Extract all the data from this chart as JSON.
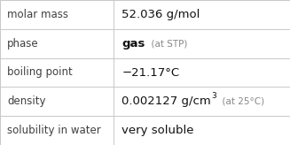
{
  "rows": [
    {
      "label": "molar mass",
      "parts": [
        {
          "text": "52.036 g/mol",
          "style": "normal",
          "size": 9.5,
          "color": "#111111"
        }
      ]
    },
    {
      "label": "phase",
      "parts": [
        {
          "text": "gas",
          "style": "bold",
          "size": 9.5,
          "color": "#111111"
        },
        {
          "text": "  (at STP)",
          "style": "normal",
          "size": 7.5,
          "color": "#888888"
        }
      ]
    },
    {
      "label": "boiling point",
      "parts": [
        {
          "text": "−21.17°C",
          "style": "normal",
          "size": 9.5,
          "color": "#111111"
        }
      ]
    },
    {
      "label": "density",
      "parts": [
        {
          "text": "0.002127 g/cm",
          "style": "normal",
          "size": 9.5,
          "color": "#111111"
        },
        {
          "text": "3",
          "style": "super",
          "size": 6.5,
          "color": "#111111"
        },
        {
          "text": "  (at 25°C)",
          "style": "normal",
          "size": 7.5,
          "color": "#888888"
        }
      ]
    },
    {
      "label": "solubility in water",
      "parts": [
        {
          "text": "very soluble",
          "style": "normal",
          "size": 9.5,
          "color": "#111111"
        }
      ]
    }
  ],
  "col_split": 0.39,
  "bg_color": "#ffffff",
  "line_color": "#c8c8c8",
  "label_color": "#404040",
  "label_fontsize": 8.5,
  "fig_width": 3.27,
  "fig_height": 1.64,
  "dpi": 100
}
